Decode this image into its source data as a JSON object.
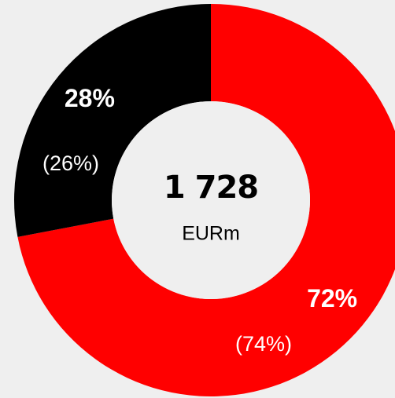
{
  "chart_data": {
    "type": "donut",
    "values": [
      72,
      28
    ],
    "value_labels": [
      "72%",
      "28%"
    ],
    "prior_values": [
      74,
      26
    ],
    "prior_value_labels": [
      "(74%)",
      "(26%)"
    ],
    "colors": [
      "#ff0000",
      "#000000"
    ],
    "center_value": {
      "value": 1728,
      "label": "1 728"
    },
    "center_label": "EURm"
  }
}
